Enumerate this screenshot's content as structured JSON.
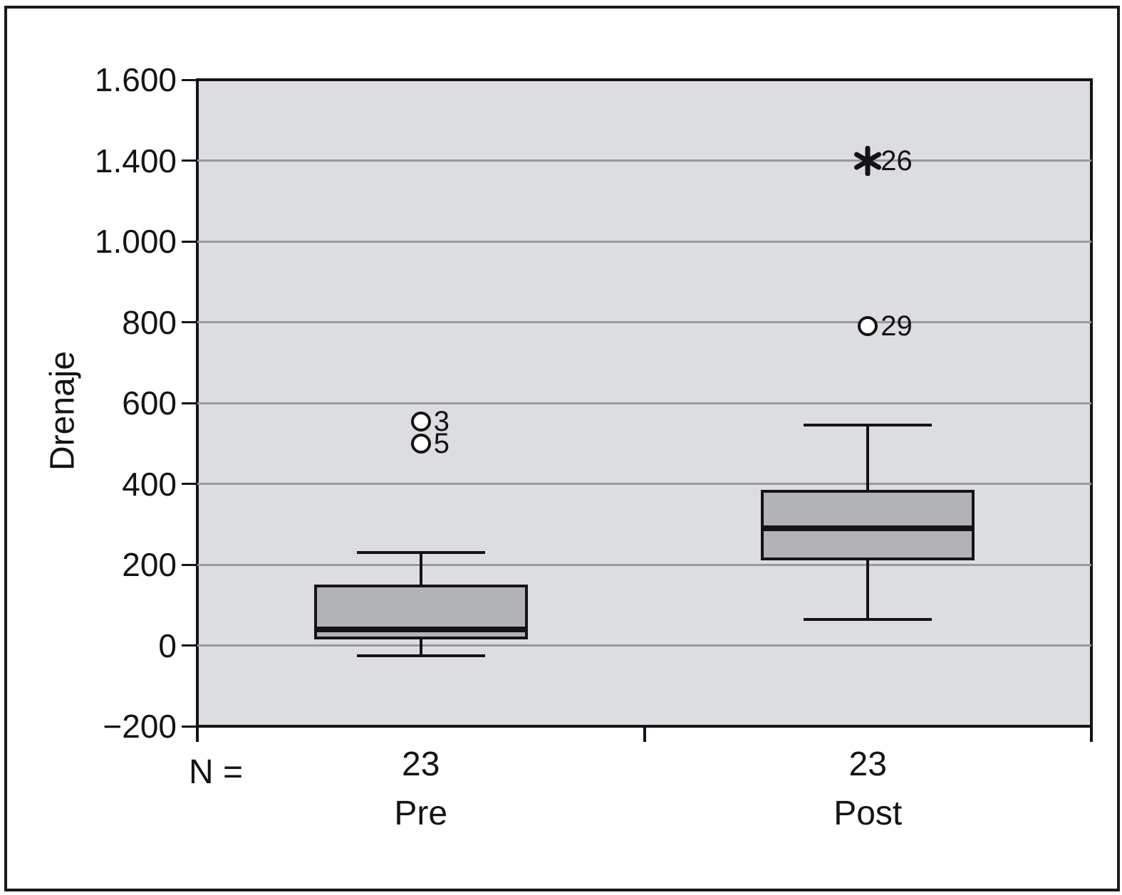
{
  "figure": {
    "n_prefix": "N ="
  },
  "chart_data": {
    "type": "box",
    "ylabel": "Drenaje",
    "xlabel": "",
    "grid": "horizontal",
    "y_ticks": [
      {
        "label": "1.600",
        "value": 1600
      },
      {
        "label": "1.400",
        "value": 1400
      },
      {
        "label": "1.000",
        "value": 1000
      },
      {
        "label": "800",
        "value": 800
      },
      {
        "label": "600",
        "value": 600
      },
      {
        "label": "400",
        "value": 400
      },
      {
        "label": "200",
        "value": 200
      },
      {
        "label": "0",
        "value": 0
      },
      {
        "label": "−200",
        "value": -200
      }
    ],
    "groups": [
      {
        "label": "Pre",
        "n": "23",
        "whisker_low": -25,
        "q1": 15,
        "median": 40,
        "q3": 150,
        "whisker_high": 230,
        "outliers": [
          {
            "value": 555,
            "label": "3",
            "marker": "circle"
          },
          {
            "value": 500,
            "label": "5",
            "marker": "circle"
          }
        ]
      },
      {
        "label": "Post",
        "n": "23",
        "whisker_low": 65,
        "q1": 210,
        "median": 290,
        "q3": 385,
        "whisker_high": 545,
        "outliers": [
          {
            "value": 1400,
            "label": "26",
            "marker": "star"
          },
          {
            "value": 790,
            "label": "29",
            "marker": "circle"
          }
        ]
      }
    ],
    "colors": {
      "plot_bg": "#dcdde0",
      "box_fill": "#b1b3b6",
      "grid": "#97999c",
      "line": "#141417",
      "outlier_fill": "#ffffff"
    }
  }
}
